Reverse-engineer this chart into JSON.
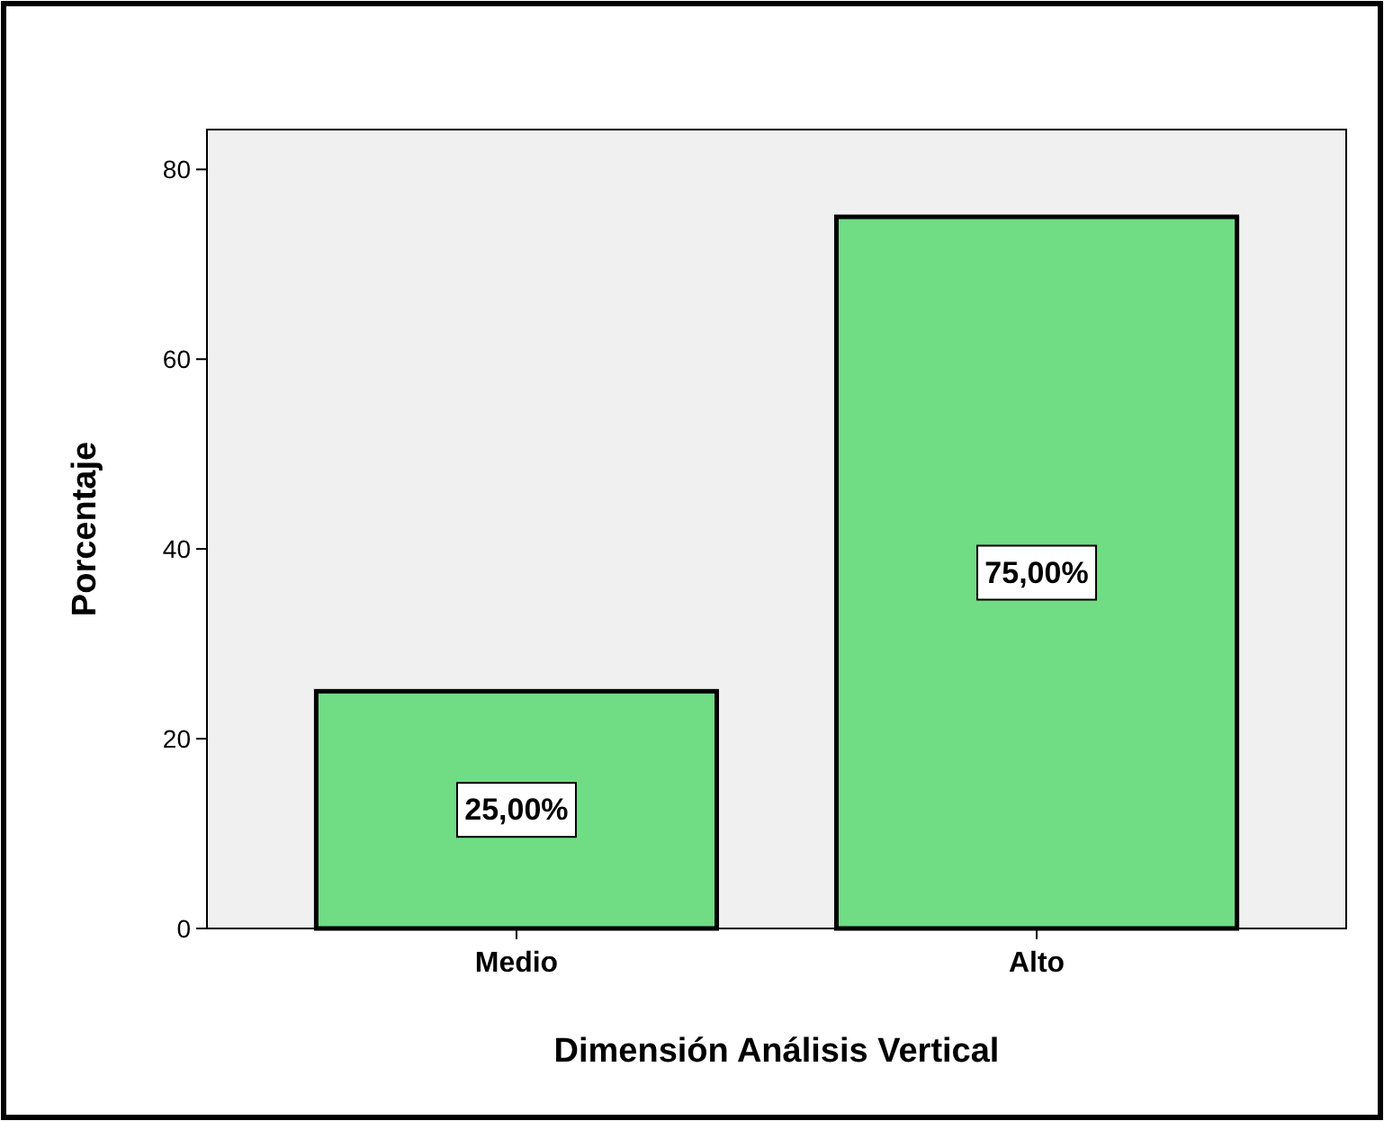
{
  "chart_data": {
    "type": "bar",
    "xlabel": "Dimensión Análisis Vertical",
    "ylabel": "Porcentaje",
    "categories": [
      "Medio",
      "Alto"
    ],
    "values": [
      25,
      75
    ],
    "color": "#70dc84",
    "value_labels": [
      "25,00%",
      "75,00%"
    ],
    "ylim": [
      0,
      84.2
    ],
    "yticks": [
      0,
      20,
      40,
      60,
      80
    ],
    "grid": false
  }
}
